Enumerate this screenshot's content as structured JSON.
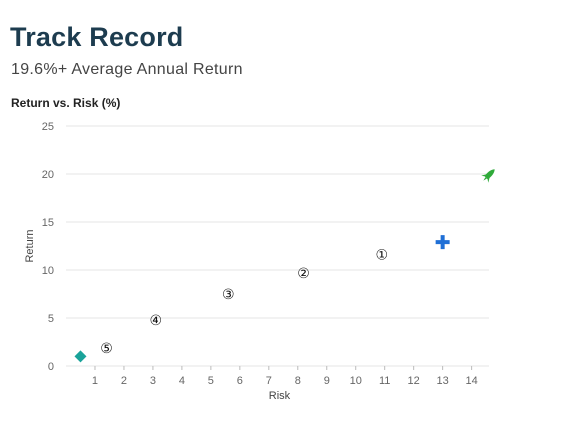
{
  "header": {
    "title": "Track Record",
    "subtitle": "19.6%+ Average Annual Return"
  },
  "colors": {
    "title": "#1d3c4f",
    "grid": "#e6e6e6",
    "diamond": "#1aa39a",
    "plus": "#1f6fd6",
    "rocket": "#2faa3a"
  },
  "chart_data": {
    "type": "scatter",
    "title": "Return vs. Risk (%)",
    "xlabel": "Risk",
    "ylabel": "Return",
    "xlim": [
      0,
      14.6
    ],
    "ylim": [
      0,
      25
    ],
    "xticks": [
      1,
      2,
      3,
      4,
      5,
      6,
      7,
      8,
      9,
      10,
      11,
      12,
      13,
      14
    ],
    "yticks": [
      0,
      5,
      10,
      15,
      20,
      25
    ],
    "grid": "horizontal",
    "points": [
      {
        "name": "diamond",
        "marker": "diamond-icon",
        "x": 0.5,
        "y": 1.0
      },
      {
        "name": "⑤",
        "marker": "label",
        "label": "⑤",
        "x": 1.4,
        "y": 1.9
      },
      {
        "name": "④",
        "marker": "label",
        "label": "④",
        "x": 3.1,
        "y": 4.8
      },
      {
        "name": "③",
        "marker": "label",
        "label": "③",
        "x": 5.6,
        "y": 7.5
      },
      {
        "name": "②",
        "marker": "label",
        "label": "②",
        "x": 8.2,
        "y": 9.7
      },
      {
        "name": "①",
        "marker": "label",
        "label": "①",
        "x": 10.9,
        "y": 11.6
      },
      {
        "name": "plus",
        "marker": "plus-icon",
        "x": 13.0,
        "y": 12.9
      },
      {
        "name": "rocket",
        "marker": "rocket-icon",
        "x": 14.6,
        "y": 19.9
      }
    ]
  }
}
